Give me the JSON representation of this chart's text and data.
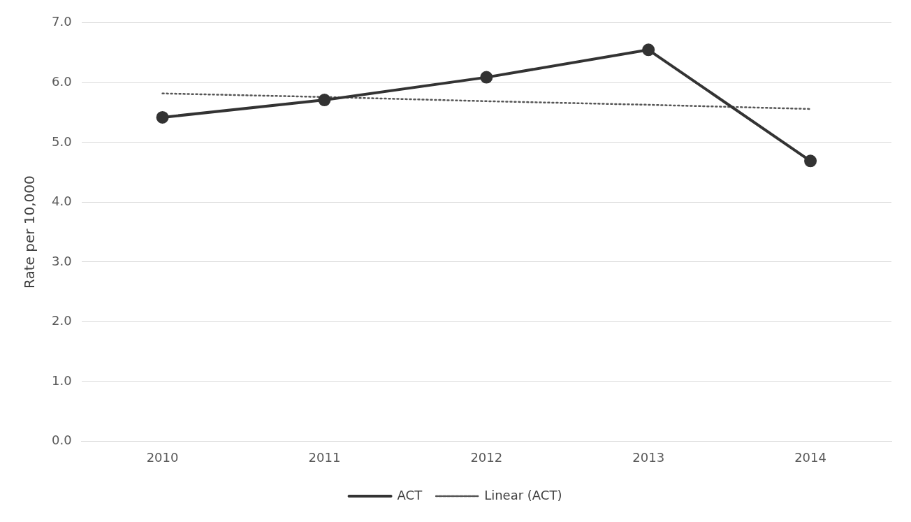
{
  "chart_data": {
    "type": "line",
    "ylabel": "Rate per 10,000",
    "categories": [
      "2010",
      "2011",
      "2012",
      "2013",
      "2014"
    ],
    "series": [
      {
        "name": "ACT",
        "color": "#333333",
        "values": [
          5.42,
          5.71,
          6.09,
          6.55,
          4.69
        ],
        "marker": "circle",
        "line_style": "solid"
      },
      {
        "name": "Linear (ACT)",
        "color": "#555555",
        "values": [
          5.82,
          5.76,
          5.69,
          5.63,
          5.56
        ],
        "marker": "none",
        "line_style": "dotted"
      }
    ],
    "ylim": [
      0,
      7
    ],
    "yticks": [
      {
        "value": 0,
        "label": "0.0"
      },
      {
        "value": 1,
        "label": "1.0"
      },
      {
        "value": 2,
        "label": "2.0"
      },
      {
        "value": 3,
        "label": "3.0"
      },
      {
        "value": 4,
        "label": "4.0"
      },
      {
        "value": 5,
        "label": "5.0"
      },
      {
        "value": 6,
        "label": "6.0"
      },
      {
        "value": 7,
        "label": "7.0"
      }
    ],
    "grid": "y",
    "legend": "bottom"
  }
}
